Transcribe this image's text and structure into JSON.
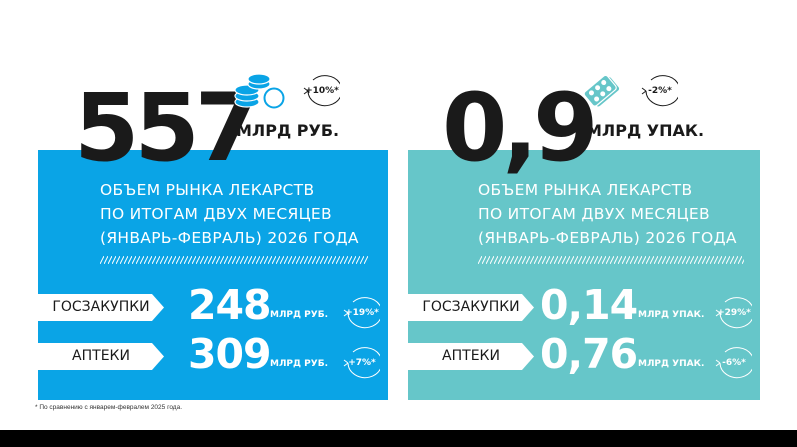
{
  "left": {
    "value": "557",
    "unit": "МЛРД РУБ.",
    "icon": "coins-icon",
    "change": "+10%*",
    "description": [
      "ОБЪЕМ РЫНКА ЛЕКАРСТВ",
      "ПО ИТОГАМ ДВУХ МЕСЯЦЕВ",
      "(ЯНВАРЬ-ФЕВРАЛЬ) 2026 ГОДА"
    ],
    "rows": [
      {
        "label": "ГОСЗАКУПКИ",
        "value": "248",
        "unit": "МЛРД РУБ.",
        "change": "+19%*"
      },
      {
        "label": "АПТЕКИ",
        "value": "309",
        "unit": "МЛРД РУБ.",
        "change": "+7%*"
      }
    ],
    "color": "#0aa4e6"
  },
  "right": {
    "value": "0,9",
    "unit": "МЛРД УПАК.",
    "icon": "pills-icon",
    "change": "-2%*",
    "description": [
      "ОБЪЕМ РЫНКА ЛЕКАРСТВ",
      "ПО ИТОГАМ ДВУХ МЕСЯЦЕВ",
      "(ЯНВАРЬ-ФЕВРАЛЬ)  2026 ГОДА"
    ],
    "rows": [
      {
        "label": "ГОСЗАКУПКИ",
        "value": "0,14",
        "unit": "МЛРД УПАК.",
        "change": "+29%*"
      },
      {
        "label": "АПТЕКИ",
        "value": "0,76",
        "unit": "МЛРД УПАК.",
        "change": "-6%*"
      }
    ],
    "color": "#66c6c9"
  },
  "footnote": "* По сравнению с январем-февралем 2025 года."
}
